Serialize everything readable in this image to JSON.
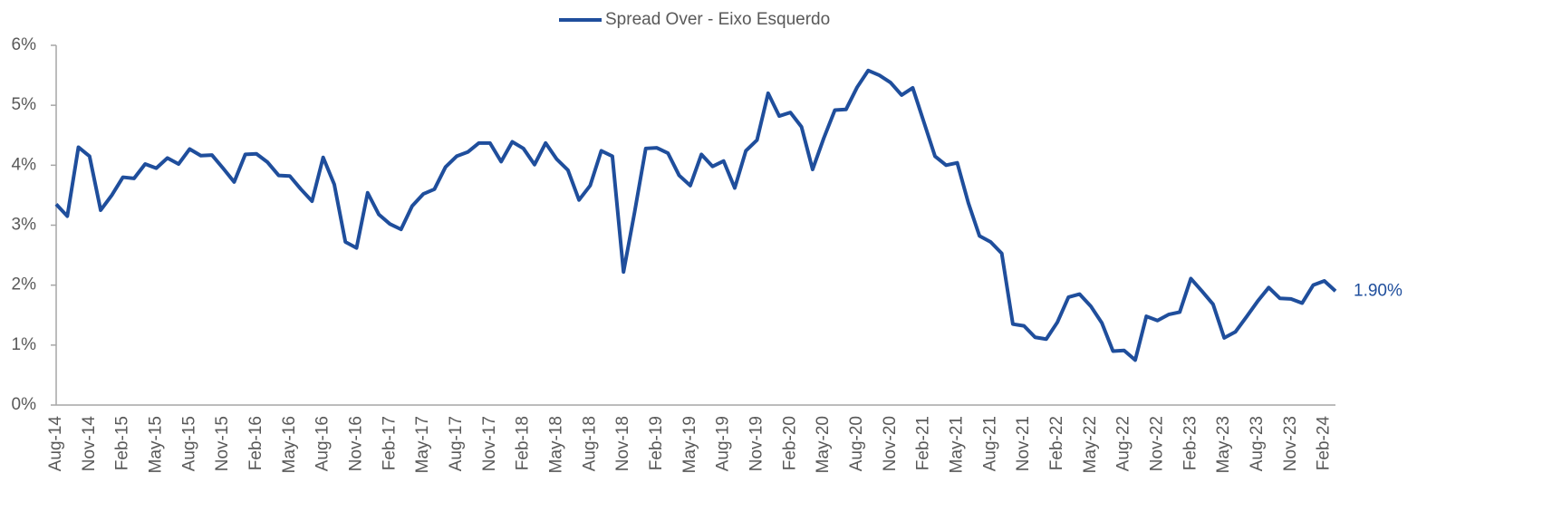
{
  "chart_data": {
    "type": "line",
    "legend": "top",
    "categories": [
      "Aug-14",
      null,
      null,
      "Nov-14",
      null,
      null,
      "Feb-15",
      null,
      null,
      "May-15",
      null,
      null,
      "Aug-15",
      null,
      null,
      "Nov-15",
      null,
      null,
      "Feb-16",
      null,
      null,
      "May-16",
      null,
      null,
      "Aug-16",
      null,
      null,
      "Nov-16",
      null,
      null,
      "Feb-17",
      null,
      null,
      "May-17",
      null,
      null,
      "Aug-17",
      null,
      null,
      "Nov-17",
      null,
      null,
      "Feb-18",
      null,
      null,
      "May-18",
      null,
      null,
      "Aug-18",
      null,
      null,
      "Nov-18",
      null,
      null,
      "Feb-19",
      null,
      null,
      "May-19",
      null,
      null,
      "Aug-19",
      null,
      null,
      "Nov-19",
      null,
      null,
      "Feb-20",
      null,
      null,
      "May-20",
      null,
      null,
      "Aug-20",
      null,
      null,
      "Nov-20",
      null,
      null,
      "Feb-21",
      null,
      null,
      "May-21",
      null,
      null,
      "Aug-21",
      null,
      null,
      "Nov-21",
      null,
      null,
      "Feb-22",
      null,
      null,
      "May-22",
      null,
      null,
      "Aug-22",
      null,
      null,
      "Nov-22",
      null,
      null,
      "Feb-23",
      null,
      null,
      "May-23",
      null,
      null,
      "Aug-23",
      null,
      null,
      "Nov-23",
      null,
      null,
      "Feb-24",
      null
    ],
    "series": [
      {
        "name": "Spread Over - Eixo Esquerdo",
        "color": "#1f4e9c",
        "values": [
          3.35,
          3.15,
          4.3,
          4.15,
          3.25,
          3.5,
          3.8,
          3.78,
          4.02,
          3.95,
          4.12,
          4.02,
          4.27,
          4.16,
          4.17,
          3.95,
          3.72,
          4.18,
          4.19,
          4.05,
          3.83,
          3.82,
          3.6,
          3.4,
          4.13,
          3.68,
          2.72,
          2.62,
          3.54,
          3.18,
          3.02,
          2.93,
          3.32,
          3.52,
          3.6,
          3.97,
          4.15,
          4.22,
          4.37,
          4.37,
          4.06,
          4.39,
          4.28,
          4.01,
          4.37,
          4.1,
          3.92,
          3.42,
          3.66,
          4.24,
          4.15,
          2.22,
          3.22,
          4.28,
          4.29,
          4.2,
          3.83,
          3.66,
          4.18,
          3.98,
          4.07,
          3.62,
          4.24,
          4.42,
          5.2,
          4.82,
          4.88,
          4.64,
          3.93,
          4.45,
          4.92,
          4.93,
          5.3,
          5.58,
          5.5,
          5.38,
          5.17,
          5.29,
          4.72,
          4.15,
          4.0,
          4.04,
          3.37,
          2.82,
          2.72,
          2.53,
          1.35,
          1.32,
          1.13,
          1.1,
          1.38,
          1.8,
          1.85,
          1.65,
          1.37,
          0.9,
          0.91,
          0.75,
          1.48,
          1.41,
          1.51,
          1.55,
          2.11,
          1.9,
          1.68,
          1.12,
          1.22,
          1.47,
          1.73,
          1.96,
          1.78,
          1.77,
          1.7,
          2.0,
          2.07,
          1.9
        ],
        "value_labels": [
          null,
          null,
          null,
          null,
          null,
          null,
          null,
          null,
          null,
          null,
          null,
          null,
          null,
          null,
          null,
          null,
          null,
          null,
          null,
          null,
          null,
          null,
          null,
          null,
          null,
          null,
          null,
          null,
          null,
          null,
          null,
          null,
          null,
          null,
          null,
          null,
          null,
          null,
          null,
          null,
          null,
          null,
          null,
          null,
          null,
          null,
          null,
          null,
          null,
          null,
          null,
          null,
          null,
          null,
          null,
          null,
          null,
          null,
          null,
          null,
          null,
          null,
          null,
          null,
          null,
          null,
          null,
          null,
          null,
          null,
          null,
          null,
          null,
          null,
          null,
          null,
          null,
          null,
          null,
          null,
          null,
          null,
          null,
          null,
          null,
          null,
          null,
          null,
          null,
          null,
          null,
          null,
          null,
          null,
          null,
          null,
          null,
          null,
          null,
          null,
          null,
          null,
          null,
          null,
          null,
          null,
          null,
          null,
          null,
          null,
          null,
          null,
          null,
          null,
          null,
          "1.90%"
        ]
      }
    ],
    "ylim": [
      0,
      6
    ],
    "yticks": [
      {
        "value": 0,
        "label": "0%"
      },
      {
        "value": 1,
        "label": "1%"
      },
      {
        "value": 2,
        "label": "2%"
      },
      {
        "value": 3,
        "label": "3%"
      },
      {
        "value": 4,
        "label": "4%"
      },
      {
        "value": 5,
        "label": "5%"
      },
      {
        "value": 6,
        "label": "6%"
      }
    ],
    "grid": false
  }
}
